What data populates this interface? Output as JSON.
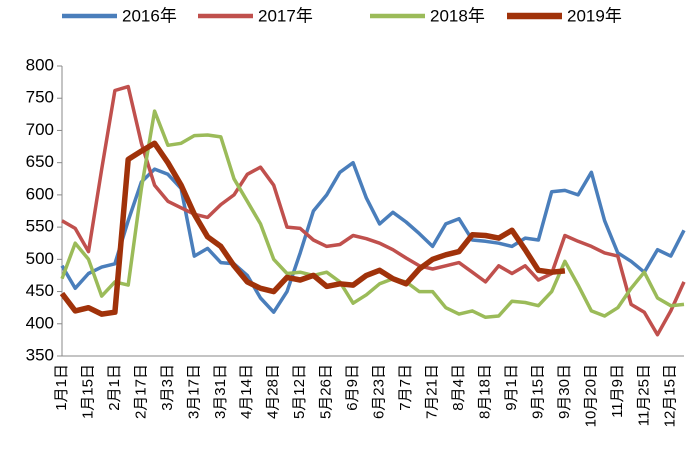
{
  "chart_data": {
    "type": "line",
    "categories": [
      "1月1日",
      null,
      "1月15日",
      null,
      "2月1日",
      null,
      "2月17日",
      null,
      "3月3日",
      null,
      "3月17日",
      null,
      "3月31日",
      null,
      "4月14日",
      null,
      "4月28日",
      null,
      "5月12日",
      null,
      "5月26日",
      null,
      "6月9日",
      null,
      "6月23日",
      null,
      "7月7日",
      null,
      "7月21日",
      null,
      "8月4日",
      null,
      "8月18日",
      null,
      "9月1日",
      null,
      "9月15日",
      null,
      "9月30日",
      null,
      "10月20日",
      null,
      "11月9日",
      null,
      "11月25日",
      null,
      "12月15日",
      null
    ],
    "series": [
      {
        "name": "2016年",
        "color": "#4a7ebb",
        "width": 3.5,
        "values": [
          490,
          455,
          478,
          488,
          493,
          560,
          620,
          640,
          632,
          610,
          505,
          517,
          495,
          493,
          475,
          440,
          418,
          450,
          510,
          575,
          600,
          635,
          650,
          595,
          555,
          573,
          558,
          540,
          520,
          555,
          563,
          530,
          528,
          525,
          520,
          533,
          530,
          605,
          607,
          600,
          635,
          560,
          510,
          497,
          480,
          515,
          505,
          545
        ]
      },
      {
        "name": "2017年",
        "color": "#c0504d",
        "width": 3.5,
        "values": [
          560,
          548,
          512,
          640,
          762,
          768,
          680,
          615,
          590,
          580,
          570,
          565,
          585,
          600,
          632,
          643,
          615,
          550,
          548,
          530,
          520,
          523,
          537,
          532,
          525,
          515,
          502,
          490,
          485,
          490,
          495,
          480,
          465,
          490,
          478,
          490,
          468,
          478,
          537,
          528,
          520,
          510,
          505,
          430,
          418,
          383,
          420,
          465
        ]
      },
      {
        "name": "2018年",
        "color": "#9bbb59",
        "width": 3.5,
        "values": [
          470,
          525,
          500,
          443,
          465,
          460,
          610,
          730,
          677,
          680,
          692,
          693,
          690,
          625,
          590,
          555,
          500,
          478,
          480,
          475,
          480,
          465,
          432,
          445,
          462,
          470,
          465,
          450,
          450,
          425,
          415,
          420,
          410,
          412,
          435,
          433,
          428,
          450,
          497,
          460,
          420,
          412,
          425,
          455,
          480,
          440,
          428,
          430
        ]
      },
      {
        "name": "2019年",
        "color": "#a0320a",
        "width": 5.5,
        "values": [
          447,
          420,
          425,
          415,
          418,
          655,
          668,
          680,
          650,
          615,
          570,
          535,
          520,
          490,
          465,
          455,
          450,
          472,
          468,
          475,
          458,
          462,
          460,
          475,
          483,
          470,
          462,
          485,
          500,
          507,
          512,
          538,
          537,
          533,
          545,
          515,
          483,
          480,
          482,
          null,
          null,
          null,
          null,
          null,
          null,
          null,
          null,
          null
        ]
      }
    ],
    "ylim": [
      350,
      800
    ],
    "yticks": [
      350,
      400,
      450,
      500,
      550,
      600,
      650,
      700,
      750,
      800
    ],
    "grid": false
  }
}
